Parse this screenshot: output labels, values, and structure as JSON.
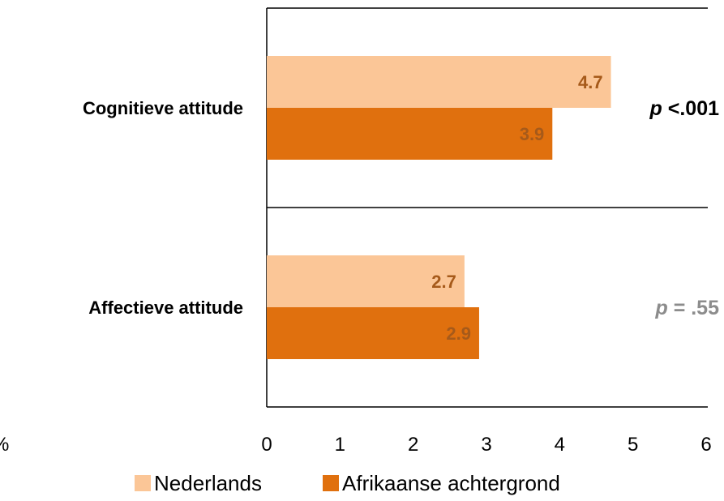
{
  "chart_data": {
    "type": "bar",
    "orientation": "horizontal",
    "categories": [
      "Cognitieve attitude",
      "Affectieve attitude"
    ],
    "series": [
      {
        "name": "Nederlands",
        "values": [
          4.7,
          2.7
        ],
        "color": "#fbc697",
        "value_labels": [
          "4.7",
          "2.7"
        ]
      },
      {
        "name": "Afrikaanse achtergrond",
        "values": [
          3.9,
          2.9
        ],
        "color": "#e0700e",
        "value_labels": [
          "3.9",
          "2.9"
        ]
      }
    ],
    "xlim": [
      0,
      6
    ],
    "xticks": [
      "0",
      "1",
      "2",
      "3",
      "4",
      "5",
      "6"
    ],
    "grid": false,
    "legend_position": "bottom",
    "annotations": [
      {
        "category": "Cognitieve attitude",
        "p_symbol": "p",
        "p_rest": " <.001",
        "color": "#000000"
      },
      {
        "category": "Affectieve attitude",
        "p_symbol": "p",
        "p_rest": " = .55",
        "color": "#8c8c8c"
      }
    ],
    "stray_text": "%",
    "value_label_color": "#a65a1a"
  }
}
